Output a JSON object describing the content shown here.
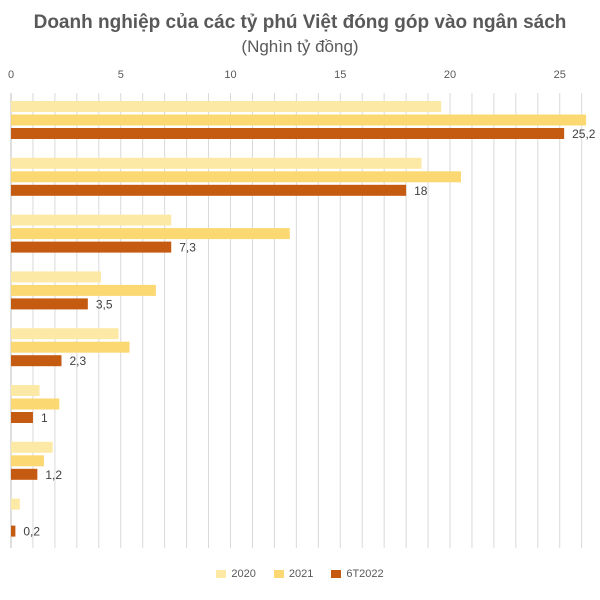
{
  "chart_data": {
    "type": "bar",
    "orientation": "horizontal",
    "title": "Doanh nghiệp của các tỷ phú Việt đóng góp vào ngân sách",
    "subtitle": "(Nghìn tỷ đồng)",
    "xlim": [
      0,
      26
    ],
    "x_ticks": [
      "0",
      "5",
      "10",
      "15",
      "20",
      "25"
    ],
    "grid": true,
    "legend_position": "bottom",
    "group_count": 8,
    "series": [
      {
        "name": "2020",
        "color": "#fde9a6",
        "values": [
          19.6,
          18.7,
          7.3,
          4.1,
          4.9,
          1.3,
          1.9,
          0.4
        ]
      },
      {
        "name": "2021",
        "color": "#fbd872",
        "values": [
          26.2,
          20.5,
          12.7,
          6.6,
          5.4,
          2.2,
          1.5,
          null
        ]
      },
      {
        "name": "6T2022",
        "color": "#c55a11",
        "values": [
          25.2,
          18,
          7.3,
          3.5,
          2.3,
          1,
          1.2,
          0.2
        ]
      }
    ],
    "data_labels": [
      "25,2",
      "18",
      "7,3",
      "3,5",
      "2,3",
      "1",
      "1,2",
      "0,2"
    ]
  }
}
